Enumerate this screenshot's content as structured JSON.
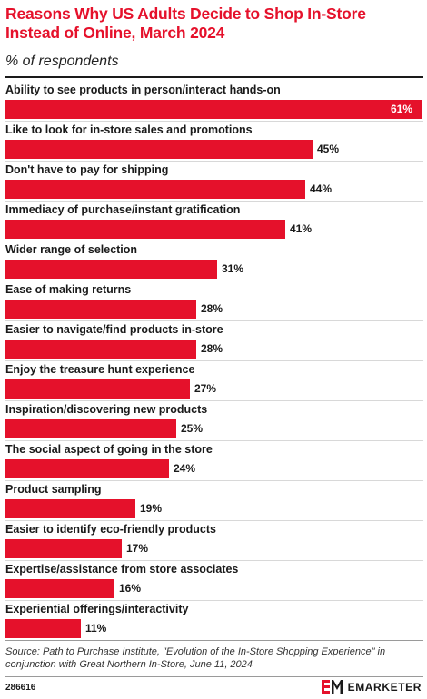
{
  "header": {
    "title": "Reasons Why US Adults Decide to Shop In-Store Instead of Online, March 2024",
    "subtitle": "% of respondents"
  },
  "chart_data": {
    "type": "bar",
    "orientation": "horizontal",
    "categories": [
      "Ability to see products in person/interact hands-on",
      "Like to look for in-store sales and promotions",
      "Don't have to pay for shipping",
      "Immediacy of purchase/instant gratification",
      "Wider range of selection",
      "Ease of making returns",
      "Easier to navigate/find products in-store",
      "Enjoy the treasure hunt experience",
      "Inspiration/discovering new products",
      "The social aspect of going in the store",
      "Product sampling",
      "Easier to identify eco-friendly products",
      "Expertise/assistance from store associates",
      "Experiential offerings/interactivity"
    ],
    "values": [
      61,
      45,
      44,
      41,
      31,
      28,
      28,
      27,
      25,
      24,
      19,
      17,
      16,
      11
    ],
    "value_labels": [
      "61%",
      "45%",
      "44%",
      "41%",
      "31%",
      "28%",
      "28%",
      "27%",
      "25%",
      "24%",
      "19%",
      "17%",
      "16%",
      "11%"
    ],
    "xlim": [
      0,
      61
    ],
    "bar_color": "#e5112b",
    "grid": false,
    "legend": "none"
  },
  "footer": {
    "source": "Source: Path to Purchase Institute, \"Evolution of the In-Store Shopping Experience\" in conjunction with Great Northern In-Store, June 11, 2024",
    "chart_id": "286616",
    "brand": "EMARKETER"
  },
  "colors": {
    "accent": "#e5112b",
    "text": "#1a1a1a"
  },
  "icons": {
    "logo": "emarketer-logo-icon"
  }
}
